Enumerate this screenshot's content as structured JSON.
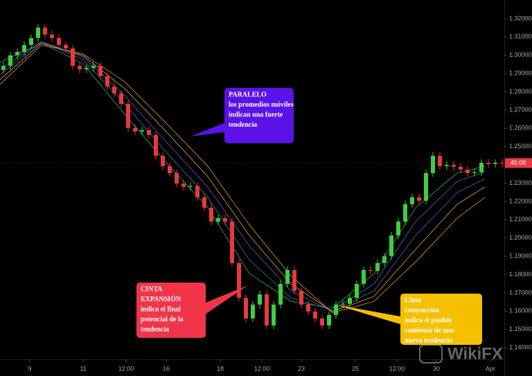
{
  "chart_data": {
    "type": "candlestick",
    "xlim": [
      0,
      72.8
    ],
    "ylim": [
      1.134,
      1.3302
    ],
    "xticks": [
      {
        "value": 4.3,
        "label": "9"
      },
      {
        "value": 12.0,
        "label": "11"
      },
      {
        "value": 18.2,
        "label": "12:00"
      },
      {
        "value": 24.0,
        "label": "16"
      },
      {
        "value": 31.8,
        "label": "18"
      },
      {
        "value": 37.8,
        "label": "12:00"
      },
      {
        "value": 43.5,
        "label": "23"
      },
      {
        "value": 51.3,
        "label": "25"
      },
      {
        "value": 57.3,
        "label": "12:00"
      },
      {
        "value": 63.0,
        "label": "30"
      },
      {
        "value": 70.8,
        "label": "Apr"
      }
    ],
    "yticks": [
      {
        "value": 1.32,
        "label": "1.32000"
      },
      {
        "value": 1.31,
        "label": "1.31000"
      },
      {
        "value": 1.3,
        "label": "1.30000"
      },
      {
        "value": 1.29,
        "label": "1.29000"
      },
      {
        "value": 1.28,
        "label": "1.28000"
      },
      {
        "value": 1.27,
        "label": "1.27000"
      },
      {
        "value": 1.26,
        "label": "1.26000"
      },
      {
        "value": 1.25,
        "label": "1.25000"
      },
      {
        "value": 1.24,
        "label": "1.24000"
      },
      {
        "value": 1.23,
        "label": "1.23000"
      },
      {
        "value": 1.22,
        "label": "1.22000"
      },
      {
        "value": 1.21,
        "label": "1.21000"
      },
      {
        "value": 1.2,
        "label": "1.20000"
      },
      {
        "value": 1.19,
        "label": "1.19000"
      },
      {
        "value": 1.18,
        "label": "1.18000"
      },
      {
        "value": 1.17,
        "label": "1.17000"
      },
      {
        "value": 1.16,
        "label": "1.16000"
      },
      {
        "value": 1.15,
        "label": "1.15000"
      },
      {
        "value": 1.14,
        "label": "1.14000"
      }
    ],
    "up_color": "#3ecf3e",
    "down_color": "#e8393f",
    "open": [
      1.292,
      1.2942,
      1.2999,
      1.3018,
      1.3056,
      1.3094,
      1.3151,
      1.3113,
      1.3094,
      1.3056,
      1.3037,
      1.2942,
      1.2923,
      1.2931,
      1.2942,
      1.2886,
      1.2829,
      1.2791,
      1.2734,
      1.2602,
      1.2583,
      1.259,
      1.2564,
      1.245,
      1.2393,
      1.2355,
      1.2298,
      1.228,
      1.2285,
      1.2223,
      1.2166,
      1.209,
      1.2109,
      1.209,
      1.1863,
      1.1673,
      1.156,
      1.1636,
      1.1692,
      1.1522,
      1.1636,
      1.1749,
      1.1825,
      1.1711,
      1.1636,
      1.1598,
      1.156,
      1.1522,
      1.1579,
      1.1636,
      1.164,
      1.1673,
      1.1749,
      1.1825,
      1.182,
      1.1863,
      1.1901,
      1.2014,
      1.209,
      1.2185,
      1.2223,
      1.2204,
      1.2355,
      1.245,
      1.2393,
      1.24,
      1.239,
      1.2374,
      1.2355,
      1.236,
      1.2412,
      1.2405,
      1.2412
    ],
    "close": [
      1.2942,
      1.2999,
      1.3018,
      1.3056,
      1.3094,
      1.3151,
      1.3113,
      1.3094,
      1.3056,
      1.3037,
      1.2942,
      1.2923,
      1.2931,
      1.2942,
      1.2886,
      1.2829,
      1.2791,
      1.2734,
      1.2602,
      1.2583,
      1.259,
      1.2564,
      1.245,
      1.2393,
      1.2355,
      1.2298,
      1.228,
      1.2285,
      1.2223,
      1.2166,
      1.209,
      1.2109,
      1.209,
      1.1863,
      1.1673,
      1.156,
      1.1636,
      1.1692,
      1.1522,
      1.1636,
      1.1749,
      1.1825,
      1.1711,
      1.1636,
      1.1598,
      1.156,
      1.1522,
      1.1579,
      1.1636,
      1.164,
      1.1673,
      1.1749,
      1.1825,
      1.182,
      1.1863,
      1.1901,
      1.2014,
      1.209,
      1.2185,
      1.2223,
      1.2204,
      1.2355,
      1.245,
      1.2393,
      1.24,
      1.239,
      1.2374,
      1.2355,
      1.236,
      1.2412,
      1.2405,
      1.2412,
      1.241
    ],
    "high": [
      1.2962,
      1.3019,
      1.3038,
      1.3076,
      1.3114,
      1.3171,
      1.3171,
      1.3133,
      1.3114,
      1.3076,
      1.3057,
      1.2962,
      1.2951,
      1.2962,
      1.2962,
      1.2906,
      1.2849,
      1.2811,
      1.2754,
      1.2622,
      1.261,
      1.261,
      1.2584,
      1.247,
      1.2413,
      1.2375,
      1.2318,
      1.2305,
      1.2305,
      1.2243,
      1.2186,
      1.2129,
      1.2129,
      1.211,
      1.1883,
      1.1693,
      1.1656,
      1.1712,
      1.1712,
      1.1656,
      1.1769,
      1.1845,
      1.1845,
      1.1731,
      1.1656,
      1.1618,
      1.158,
      1.1599,
      1.1656,
      1.166,
      1.1693,
      1.1769,
      1.1845,
      1.1845,
      1.1883,
      1.1921,
      1.2034,
      1.211,
      1.2205,
      1.2243,
      1.2243,
      1.2375,
      1.247,
      1.247,
      1.242,
      1.242,
      1.241,
      1.2394,
      1.238,
      1.2432,
      1.2432,
      1.2432,
      1.2432
    ],
    "low": [
      1.29,
      1.2922,
      1.2979,
      1.2998,
      1.3036,
      1.3074,
      1.3093,
      1.3074,
      1.3036,
      1.3017,
      1.2922,
      1.2903,
      1.2903,
      1.2911,
      1.2866,
      1.2809,
      1.2771,
      1.2714,
      1.2582,
      1.2563,
      1.2563,
      1.2544,
      1.243,
      1.2373,
      1.2335,
      1.2278,
      1.226,
      1.226,
      1.2203,
      1.2146,
      1.207,
      1.207,
      1.207,
      1.1843,
      1.1653,
      1.154,
      1.154,
      1.1616,
      1.1502,
      1.1502,
      1.1616,
      1.1729,
      1.1691,
      1.1616,
      1.1578,
      1.154,
      1.1502,
      1.1502,
      1.1559,
      1.1616,
      1.162,
      1.1653,
      1.1729,
      1.18,
      1.18,
      1.1843,
      1.1881,
      1.1994,
      1.207,
      1.2165,
      1.2184,
      1.2184,
      1.2335,
      1.2373,
      1.2373,
      1.237,
      1.2354,
      1.2335,
      1.2335,
      1.234,
      1.2385,
      1.2385,
      1.239
    ],
    "ribbons": [
      {
        "color": "#2e9e5e",
        "x": [
          0,
          6,
          12,
          18,
          24,
          30,
          36,
          42,
          48,
          54,
          60,
          66,
          70
        ],
        "values": [
          1.2961,
          1.3067,
          1.2953,
          1.2677,
          1.2412,
          1.2166,
          1.1806,
          1.1654,
          1.1616,
          1.1806,
          1.2166,
          1.2355,
          1.2393
        ]
      },
      {
        "color": "#2f6fa8",
        "x": [
          0,
          6,
          12,
          18,
          24,
          30,
          36,
          42,
          48,
          54,
          60,
          66,
          70
        ],
        "values": [
          1.2923,
          1.3075,
          1.2976,
          1.2734,
          1.2469,
          1.2222,
          1.1881,
          1.1673,
          1.1605,
          1.1749,
          1.209,
          1.231,
          1.2363
        ]
      },
      {
        "color": "#6a48b0",
        "x": [
          0,
          6,
          12,
          18,
          24,
          30,
          36,
          42,
          48,
          54,
          60,
          66,
          70
        ],
        "values": [
          1.2893,
          1.3075,
          1.2991,
          1.2779,
          1.2525,
          1.2279,
          1.1957,
          1.1711,
          1.1597,
          1.1711,
          1.2014,
          1.2249,
          1.2325
        ]
      },
      {
        "color": "#b8a030",
        "x": [
          0,
          6,
          12,
          18,
          24,
          30,
          36,
          42,
          48,
          54,
          60,
          66,
          70
        ],
        "values": [
          1.2866,
          1.3067,
          1.2999,
          1.2817,
          1.2582,
          1.2336,
          1.2014,
          1.1749,
          1.1597,
          1.1681,
          1.1938,
          1.2185,
          1.2279
        ]
      },
      {
        "color": "#d0883a",
        "x": [
          0,
          6,
          12,
          18,
          24,
          30,
          36,
          42,
          48,
          54,
          60,
          66,
          70
        ],
        "values": [
          1.284,
          1.3056,
          1.3007,
          1.2855,
          1.2628,
          1.2393,
          1.2071,
          1.1794,
          1.159,
          1.1654,
          1.187,
          1.2109,
          1.2222
        ]
      }
    ],
    "price_tag": "45:09",
    "annotations": [
      {
        "color": "#5b12e8",
        "lines": [
          "PARALELO",
          "los promedios móviles",
          "indican una fuerte",
          "tendencia"
        ]
      },
      {
        "color": "#f0354a",
        "lines": [
          "CINTA",
          "EXPANSIÓN",
          "indica el final",
          "potencial de la",
          "tendencia"
        ]
      },
      {
        "color": "#f5c000",
        "lines": [
          "Cinta",
          "contracción",
          "indica el posible",
          "comienzo de una",
          "nueva tendencia"
        ]
      }
    ],
    "watermark": "WikiFX"
  }
}
